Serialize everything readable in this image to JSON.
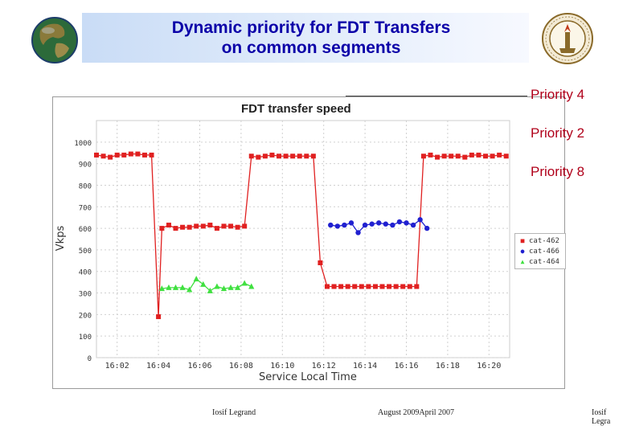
{
  "slide": {
    "title_line1": "Dynamic priority for FDT Transfers",
    "title_line2": "on common segments",
    "priority_labels": [
      "Priority 4",
      "Priority 2",
      "Priority 8"
    ],
    "footer_left": "Iosif Legrand",
    "footer_center": "August   2009April 2007",
    "footer_right": "Iosif Legra"
  },
  "colors": {
    "title": "#0b00a8",
    "priority": "#b0001a",
    "s462": "#e02020",
    "s466": "#2020d0",
    "s464": "#40e040"
  },
  "chart_data": {
    "type": "line",
    "title": "FDT transfer speed",
    "xlabel": "Service Local Time",
    "ylabel": "Vkps",
    "ylim": [
      0,
      1100
    ],
    "xlim": [
      "16:01:00",
      "16:21:00"
    ],
    "yticks": [
      0,
      100,
      200,
      300,
      400,
      500,
      600,
      700,
      800,
      900,
      1000
    ],
    "ytick_labels": [
      "0",
      "100",
      "200",
      "300",
      "400",
      "500",
      "600",
      "700",
      "800",
      "900",
      "1000"
    ],
    "xticks": [
      "16:02",
      "16:04",
      "16:06",
      "16:08",
      "16:10",
      "16:12",
      "16:14",
      "16:16",
      "16:18",
      "16:20"
    ],
    "xtick_labels": [
      "16:02",
      "16:04",
      "16:06",
      "16:08",
      "16:10",
      "16:12",
      "16:14",
      "16:16",
      "16:18",
      "16:20"
    ],
    "grid": true,
    "legend": "right",
    "series": [
      {
        "name": "cat-462",
        "marker": "square",
        "x": [
          "16:01:00",
          "16:01:20",
          "16:01:40",
          "16:02:00",
          "16:02:20",
          "16:02:40",
          "16:03:00",
          "16:03:20",
          "16:03:40",
          "16:04:00",
          "16:04:10",
          "16:04:30",
          "16:04:50",
          "16:05:10",
          "16:05:30",
          "16:05:50",
          "16:06:10",
          "16:06:30",
          "16:06:50",
          "16:07:10",
          "16:07:30",
          "16:07:50",
          "16:08:10",
          "16:08:30",
          "16:08:50",
          "16:09:10",
          "16:09:30",
          "16:09:50",
          "16:10:10",
          "16:10:30",
          "16:10:50",
          "16:11:10",
          "16:11:30",
          "16:11:50",
          "16:12:10",
          "16:12:30",
          "16:12:50",
          "16:13:10",
          "16:13:30",
          "16:13:50",
          "16:14:10",
          "16:14:30",
          "16:14:50",
          "16:15:10",
          "16:15:30",
          "16:15:50",
          "16:16:10",
          "16:16:30",
          "16:16:50",
          "16:17:10",
          "16:17:30",
          "16:17:50",
          "16:18:10",
          "16:18:30",
          "16:18:50",
          "16:19:10",
          "16:19:30",
          "16:19:50",
          "16:20:10",
          "16:20:30",
          "16:20:50"
        ],
        "y": [
          940,
          935,
          930,
          940,
          940,
          945,
          945,
          940,
          940,
          190,
          600,
          615,
          600,
          605,
          605,
          610,
          610,
          615,
          600,
          610,
          610,
          605,
          610,
          935,
          930,
          935,
          940,
          935,
          935,
          935,
          935,
          935,
          935,
          440,
          330,
          330,
          330,
          330,
          330,
          330,
          330,
          330,
          330,
          330,
          330,
          330,
          330,
          330,
          935,
          940,
          930,
          935,
          935,
          935,
          930,
          940,
          940,
          935,
          935,
          940,
          935
        ]
      },
      {
        "name": "cat-466",
        "marker": "circle",
        "x": [
          "16:12:20",
          "16:12:40",
          "16:13:00",
          "16:13:20",
          "16:13:40",
          "16:14:00",
          "16:14:20",
          "16:14:40",
          "16:15:00",
          "16:15:20",
          "16:15:40",
          "16:16:00",
          "16:16:20",
          "16:16:40",
          "16:17:00"
        ],
        "y": [
          615,
          610,
          615,
          625,
          580,
          615,
          620,
          625,
          620,
          615,
          630,
          625,
          615,
          640,
          600
        ]
      },
      {
        "name": "cat-464",
        "marker": "triangle",
        "x": [
          "16:04:10",
          "16:04:30",
          "16:04:50",
          "16:05:10",
          "16:05:30",
          "16:05:50",
          "16:06:10",
          "16:06:30",
          "16:06:50",
          "16:07:10",
          "16:07:30",
          "16:07:50",
          "16:08:10",
          "16:08:30"
        ],
        "y": [
          320,
          325,
          325,
          325,
          315,
          365,
          340,
          310,
          330,
          320,
          325,
          325,
          345,
          330
        ]
      }
    ]
  }
}
